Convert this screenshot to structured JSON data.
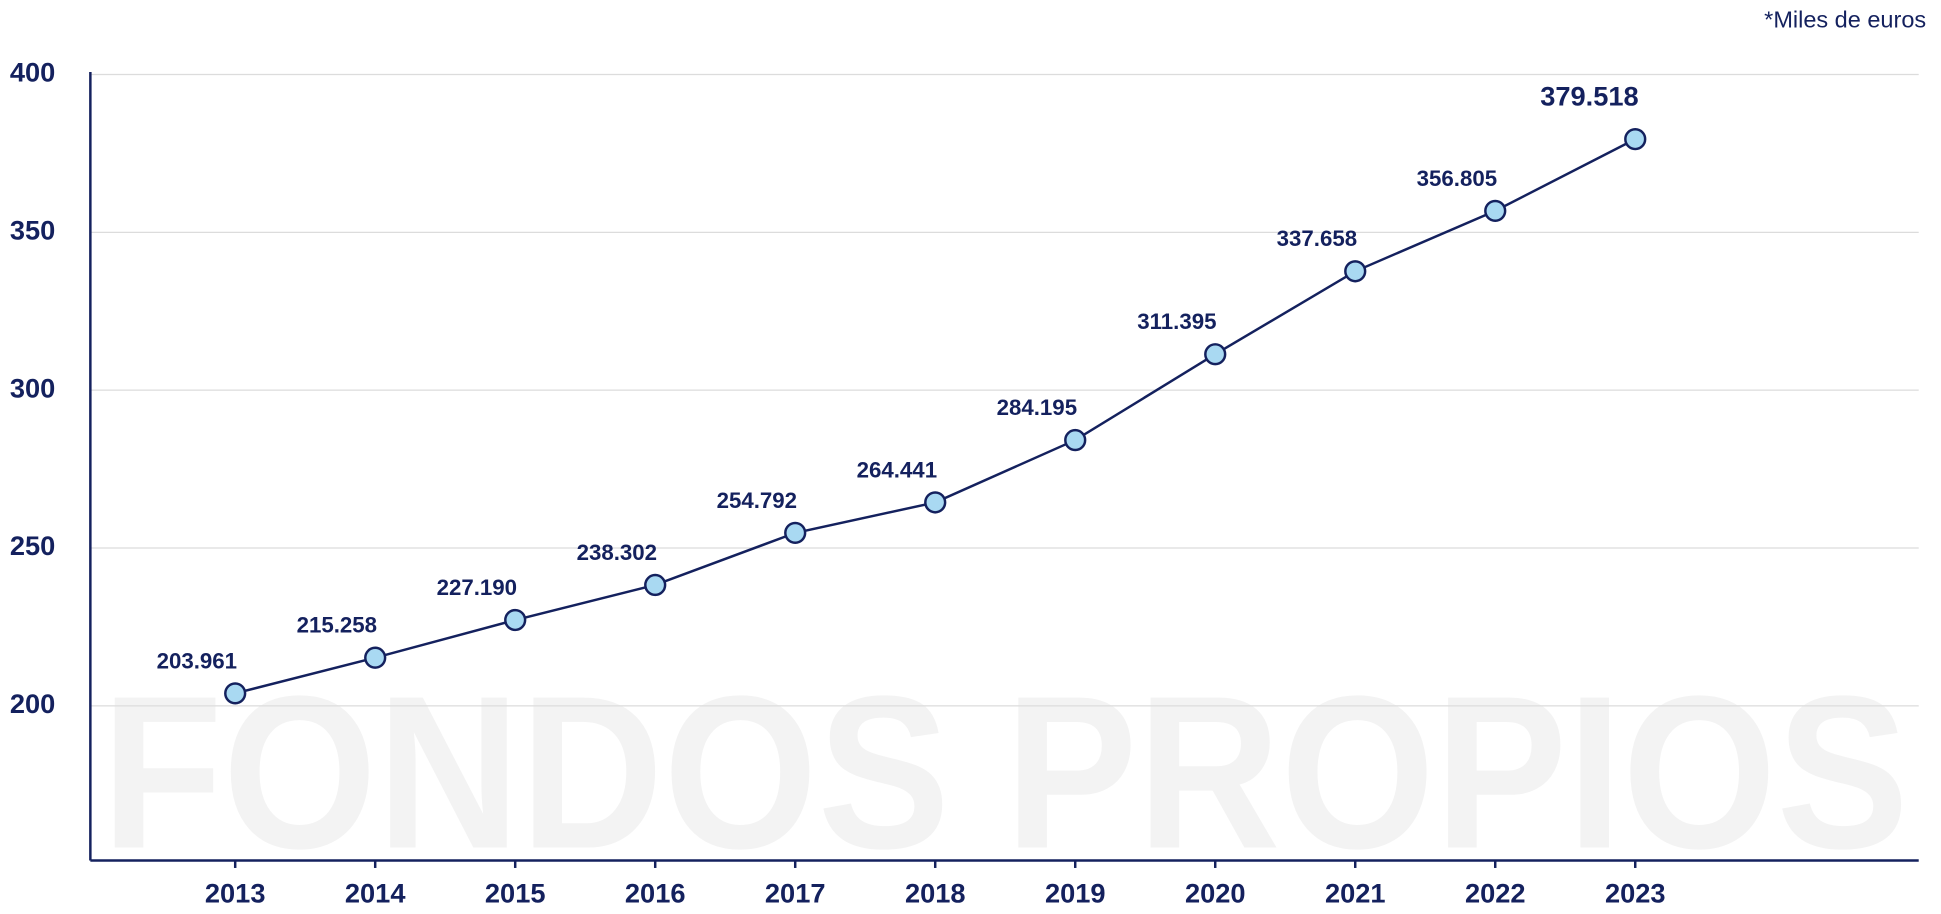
{
  "chart_data": {
    "type": "line",
    "note": "*Miles de euros",
    "watermark": "FONDOS PROPIOS",
    "categories": [
      "2013",
      "2014",
      "2015",
      "2016",
      "2017",
      "2018",
      "2019",
      "2020",
      "2021",
      "2022",
      "2023"
    ],
    "series": [
      {
        "color": "#14215e",
        "marker_color": "#a9d9f2",
        "values": [
          203.961,
          215.258,
          227.19,
          238.302,
          254.792,
          264.441,
          284.195,
          311.395,
          337.658,
          356.805,
          379.518
        ],
        "value_labels": [
          "203.961",
          "215.258",
          "227.190",
          "238.302",
          "254.792",
          "264.441",
          "284.195",
          "311.395",
          "337.658",
          "356.805",
          "379.518"
        ]
      }
    ],
    "ylim": [
      151,
      400
    ],
    "yticks": [
      200,
      250,
      300,
      350,
      400
    ],
    "grid": true
  }
}
